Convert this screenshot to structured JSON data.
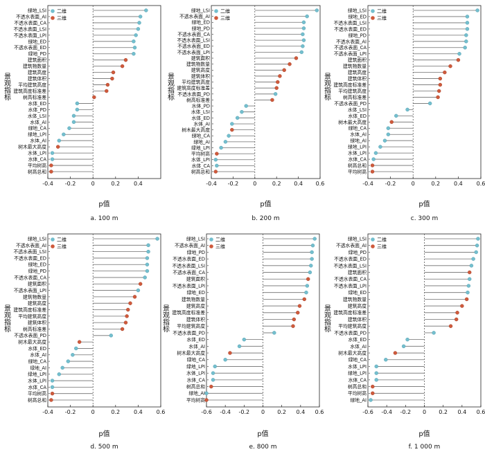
{
  "chart_data": [
    {
      "type": "lollipop",
      "caption": "a. 100 m",
      "ylabel": "景观指标",
      "xlabel": "p值",
      "xlim": [
        -0.4,
        0.6
      ],
      "xticks": [
        -0.4,
        -0.2,
        0,
        0.2,
        0.4
      ],
      "legend": [
        "二维",
        "三维"
      ],
      "categories": [
        "绿地_LSI",
        "不透水表面_AI",
        "不透水表面_CA",
        "不透水表面_LSI",
        "不透水表面_LPI",
        "绿地_ED",
        "不透水表面_ED",
        "绿地_PD",
        "建筑面积",
        "建筑物数量",
        "建筑高度",
        "建筑体积",
        "平均建筑高度",
        "建筑高度标准差",
        "树高标准差",
        "水体_ED",
        "水体_PD",
        "水体_LSI",
        "水体_AI",
        "绿地_CA",
        "绿地_LPI",
        "水体_AI",
        "树木最大高度",
        "水体_LPI",
        "水体_CA",
        "平均树高",
        "树高总和"
      ],
      "values": [
        0.47,
        0.42,
        0.41,
        0.4,
        0.38,
        0.36,
        0.37,
        0.36,
        0.29,
        0.26,
        0.18,
        0.17,
        0.13,
        0.12,
        0.01,
        -0.14,
        -0.14,
        -0.17,
        -0.17,
        -0.21,
        -0.26,
        -0.3,
        -0.31,
        -0.36,
        -0.36,
        -0.37,
        -0.37
      ],
      "dim": [
        "2D",
        "2D",
        "2D",
        "2D",
        "2D",
        "2D",
        "2D",
        "2D",
        "3D",
        "3D",
        "3D",
        "3D",
        "3D",
        "3D",
        "3D",
        "2D",
        "2D",
        "2D",
        "2D",
        "2D",
        "2D",
        "2D",
        "3D",
        "2D",
        "2D",
        "3D",
        "3D"
      ]
    },
    {
      "type": "lollipop",
      "caption": "b. 200 m",
      "ylabel": "景观指标",
      "xlabel": "p值",
      "xlim": [
        -0.4,
        0.6
      ],
      "xticks": [
        -0.4,
        -0.2,
        0,
        0.2,
        0.4,
        0.6
      ],
      "legend": [
        "二维",
        "三维"
      ],
      "categories": [
        "绿地_LSI",
        "不透水表面_AI",
        "绿地_ED",
        "绿地_PD",
        "不透水表面_CA",
        "不透水表面_LSI",
        "不透水表面_ED",
        "不透水表面_LPI",
        "建筑面积",
        "建筑物数量",
        "建筑高度",
        "建筑体积",
        "平均建筑高度",
        "建筑高度标准差",
        "不透水表面_PD",
        "树高标准差",
        "水体_PD",
        "水体_LSI",
        "水体_ED",
        "水体_AI",
        "树木最大高度",
        "绿地_CA",
        "绿地_AI",
        "绿地_LPI",
        "平均树高",
        "水体_LPI",
        "水体_CA",
        "树高总和"
      ],
      "values": [
        0.57,
        0.48,
        0.45,
        0.45,
        0.44,
        0.45,
        0.44,
        0.43,
        0.38,
        0.32,
        0.27,
        0.23,
        0.21,
        0.2,
        0.19,
        0.16,
        -0.08,
        -0.12,
        -0.16,
        -0.21,
        -0.21,
        -0.24,
        -0.27,
        -0.31,
        -0.35,
        -0.36,
        -0.35,
        -0.36
      ],
      "dim": [
        "2D",
        "2D",
        "2D",
        "2D",
        "2D",
        "2D",
        "2D",
        "2D",
        "3D",
        "3D",
        "3D",
        "3D",
        "3D",
        "3D",
        "2D",
        "3D",
        "2D",
        "2D",
        "2D",
        "2D",
        "3D",
        "2D",
        "2D",
        "2D",
        "3D",
        "2D",
        "2D",
        "3D"
      ]
    },
    {
      "type": "lollipop",
      "caption": "c. 300 m",
      "ylabel": "景观指标",
      "xlabel": "p值",
      "xlim": [
        -0.4,
        0.6
      ],
      "xticks": [
        -0.4,
        -0.2,
        0,
        0.2,
        0.4,
        0.6
      ],
      "legend": [
        "二维",
        "三维"
      ],
      "categories": [
        "绿地_LSI",
        "绿地_ED",
        "不透水表面_LSI",
        "不透水表面_ED",
        "绿地_PD",
        "不透水表面_AI",
        "不透水表面_CA",
        "不透水表面_LPI",
        "建筑面积",
        "建筑物数量",
        "建筑高度",
        "建筑体积",
        "建筑高度标准差",
        "平均建筑高度",
        "树高标准差",
        "不透水表面_PD",
        "水体_LSI",
        "水体_ED",
        "树木最大高度",
        "绿地_CA",
        "水体_AI",
        "绿地_AI",
        "绿地_LPI",
        "水体_LPI",
        "水体_CA",
        "树高总和",
        "平均树高"
      ],
      "values": [
        0.57,
        0.48,
        0.48,
        0.48,
        0.47,
        0.47,
        0.46,
        0.41,
        0.4,
        0.33,
        0.28,
        0.24,
        0.24,
        0.23,
        0.22,
        0.15,
        -0.05,
        -0.15,
        -0.19,
        -0.22,
        -0.22,
        -0.25,
        -0.29,
        -0.33,
        -0.35,
        -0.36,
        -0.36
      ],
      "dim": [
        "2D",
        "2D",
        "2D",
        "2D",
        "2D",
        "2D",
        "2D",
        "2D",
        "3D",
        "3D",
        "3D",
        "3D",
        "3D",
        "3D",
        "3D",
        "2D",
        "2D",
        "2D",
        "3D",
        "2D",
        "2D",
        "2D",
        "2D",
        "2D",
        "2D",
        "3D",
        "3D"
      ]
    },
    {
      "type": "lollipop",
      "caption": "d. 500 m",
      "ylabel": "景观指标",
      "xlabel": "p值",
      "xlim": [
        -0.4,
        0.6
      ],
      "xticks": [
        -0.4,
        -0.2,
        0,
        0.2,
        0.4,
        0.6
      ],
      "legend": [
        "二维",
        "三维"
      ],
      "categories": [
        "绿地_LSI",
        "不透水表面_AI",
        "不透水表面_LSI",
        "不透水表面_ED",
        "绿地_ED",
        "绿地_PD",
        "不透水表面_CA",
        "建筑面积",
        "不透水表面_LPI",
        "建筑物数量",
        "建筑高度",
        "建筑高度标准差",
        "平均建筑高度",
        "建筑体积",
        "树高标准差",
        "不透水表面_PD",
        "树木最大高度",
        "水体_ED",
        "水体_AI",
        "绿地_CA",
        "绿地_AI",
        "绿地_LPI",
        "水体_LPI",
        "水体_CA",
        "平均树高",
        "树高总和"
      ],
      "values": [
        0.57,
        0.49,
        0.49,
        0.48,
        0.48,
        0.48,
        0.46,
        0.42,
        0.4,
        0.37,
        0.33,
        0.31,
        0.3,
        0.29,
        0.26,
        0.16,
        -0.12,
        -0.15,
        -0.18,
        -0.22,
        -0.27,
        -0.3,
        -0.36,
        -0.36,
        -0.36,
        -0.37
      ],
      "dim": [
        "2D",
        "2D",
        "2D",
        "2D",
        "2D",
        "2D",
        "2D",
        "3D",
        "2D",
        "3D",
        "3D",
        "3D",
        "3D",
        "3D",
        "3D",
        "2D",
        "3D",
        "2D",
        "2D",
        "2D",
        "2D",
        "2D",
        "2D",
        "2D",
        "3D",
        "3D"
      ]
    },
    {
      "type": "lollipop",
      "caption": "e. 800 m",
      "ylabel": "景观指标",
      "xlabel": "p值",
      "xlim": [
        -0.6,
        0.6
      ],
      "xticks": [
        -0.6,
        -0.4,
        -0.2,
        0,
        0.2,
        0.4,
        0.6
      ],
      "legend": [
        "二维",
        "三维"
      ],
      "categories": [
        "绿地_LSI",
        "不透水表面_AI",
        "绿地_PD",
        "不透水表面_ED",
        "不透水表面_LSI",
        "不透水表面_CA",
        "建筑面积",
        "不透水表面_LPI",
        "绿地_ED",
        "建筑物数量",
        "建筑高度",
        "建筑高度标准差",
        "建筑体积",
        "平均建筑高度",
        "不透水表面_PD",
        "水体_ED",
        "水体_AI",
        "树木最大高度",
        "绿地_CA",
        "绿地_LPI",
        "水体_LPI",
        "水体_CA",
        "树高总和",
        "绿地_AI",
        "平均树高"
      ],
      "values": [
        0.55,
        0.53,
        0.52,
        0.52,
        0.51,
        0.5,
        0.48,
        0.47,
        0.46,
        0.44,
        0.39,
        0.37,
        0.33,
        0.32,
        0.12,
        -0.2,
        -0.25,
        -0.35,
        -0.4,
        -0.51,
        -0.53,
        -0.53,
        -0.55,
        -0.6,
        -0.6
      ],
      "dim": [
        "2D",
        "2D",
        "2D",
        "2D",
        "2D",
        "2D",
        "3D",
        "2D",
        "2D",
        "3D",
        "3D",
        "3D",
        "3D",
        "3D",
        "2D",
        "2D",
        "2D",
        "3D",
        "2D",
        "2D",
        "2D",
        "2D",
        "3D",
        "2D",
        "3D"
      ]
    },
    {
      "type": "lollipop",
      "caption": "f. 1 000 m",
      "ylabel": "景观指标",
      "xlabel": "p值",
      "xlim": [
        -0.6,
        0.6
      ],
      "xticks": [
        -0.6,
        -0.4,
        -0.2,
        0,
        0.2,
        0.4,
        0.6
      ],
      "legend": [
        "二维",
        "三维"
      ],
      "categories": [
        "绿地_LSI",
        "不透水表面_AI",
        "绿地_PD",
        "不透水表面_ED",
        "不透水表面_LSI",
        "建筑面积",
        "不透水表面_CA",
        "不透水表面_LPI",
        "绿地_ED",
        "建筑物数量",
        "建筑高度",
        "建筑高度标准差",
        "建筑体积",
        "平均建筑高度",
        "不透水表面_PD",
        "水体_ED",
        "水体_AI",
        "树木最大高度",
        "绿地_CA",
        "水体_LPI",
        "绿地_LPI",
        "水体_CA",
        "树高总和",
        "平均树高",
        "绿地_AI"
      ],
      "values": [
        0.57,
        0.56,
        0.55,
        0.52,
        0.5,
        0.48,
        0.48,
        0.47,
        0.46,
        0.45,
        0.4,
        0.35,
        0.34,
        0.28,
        0.1,
        -0.18,
        -0.22,
        -0.31,
        -0.41,
        -0.51,
        -0.51,
        -0.51,
        -0.55,
        -0.55,
        -0.57
      ],
      "dim": [
        "2D",
        "2D",
        "2D",
        "2D",
        "2D",
        "3D",
        "2D",
        "2D",
        "2D",
        "3D",
        "3D",
        "3D",
        "3D",
        "3D",
        "2D",
        "2D",
        "2D",
        "3D",
        "2D",
        "2D",
        "2D",
        "2D",
        "3D",
        "3D",
        "2D"
      ]
    }
  ],
  "colors": {
    "two_d": "#74bfce",
    "three_d": "#cf5a3c",
    "stem": "#6e6e6e",
    "axis": "#222222",
    "zero_line": "#444444"
  }
}
